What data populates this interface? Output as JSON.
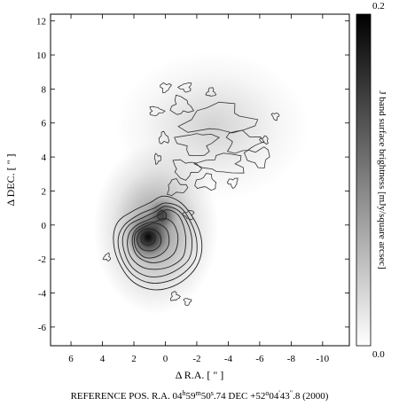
{
  "chart_data": {
    "type": "heatmap",
    "xlabel": "Δ R.A. [ \" ]",
    "ylabel": "Δ DEC. [ \" ]",
    "xlim": [
      7.3,
      -11.7
    ],
    "ylim": [
      -7.1,
      12.4
    ],
    "x_ticks": [
      6,
      4,
      2,
      0,
      -2,
      -4,
      -6,
      -8,
      -10
    ],
    "y_ticks": [
      12,
      10,
      8,
      6,
      4,
      2,
      0,
      -2,
      -4,
      -6
    ],
    "x_tick_labels": [
      "6",
      "4",
      "2",
      "0",
      "-2",
      "-4",
      "-6",
      "-8",
      "-10"
    ],
    "y_tick_labels": [
      "12",
      "10",
      "8",
      "6",
      "4",
      "2",
      "0",
      "-2",
      "-4",
      "-6"
    ],
    "colorbar": {
      "min": 0.0,
      "max": 0.2,
      "min_label": "0.0",
      "max_label": "0.2",
      "label": "J band surface brightness [mJy/square arcsec]",
      "colormap": "grayscale-inverted"
    },
    "sources": [
      {
        "x": 1.1,
        "y": -0.7,
        "peak": 0.2,
        "sx": 0.65,
        "sy": 0.65
      },
      {
        "x": 0.2,
        "y": 0.6,
        "peak": 0.13,
        "sx": 0.45,
        "sy": 0.45
      },
      {
        "x": 0.6,
        "y": -0.2,
        "peak": 0.09,
        "sx": 1.8,
        "sy": 2.3
      },
      {
        "x": -3.0,
        "y": 5.8,
        "peak": 0.035,
        "sx": 2.8,
        "sy": 2.0
      }
    ],
    "contour_rings": [
      [
        [
          0.1,
          1.7
        ],
        [
          -1.0,
          1.3
        ],
        [
          -1.9,
          0.2
        ],
        [
          -2.3,
          -0.9
        ],
        [
          -2.2,
          -2.0
        ],
        [
          -1.6,
          -2.9
        ],
        [
          -0.5,
          -3.6
        ],
        [
          0.8,
          -3.8
        ],
        [
          2.1,
          -3.3
        ],
        [
          3.0,
          -2.1
        ],
        [
          3.3,
          -0.8
        ],
        [
          3.0,
          0.2
        ],
        [
          2.1,
          0.8
        ],
        [
          1.0,
          1.3
        ]
      ],
      [
        [
          0.0,
          1.3
        ],
        [
          -1.0,
          1.0
        ],
        [
          -1.7,
          0.0
        ],
        [
          -2.0,
          -1.0
        ],
        [
          -1.9,
          -2.0
        ],
        [
          -1.2,
          -2.8
        ],
        [
          -0.2,
          -3.3
        ],
        [
          1.0,
          -3.4
        ],
        [
          2.1,
          -2.9
        ],
        [
          2.8,
          -1.9
        ],
        [
          3.0,
          -0.8
        ],
        [
          2.6,
          0.0
        ],
        [
          1.7,
          0.6
        ],
        [
          0.7,
          1.0
        ]
      ],
      [
        [
          0.0,
          1.1
        ],
        [
          -0.9,
          0.8
        ],
        [
          -1.5,
          -0.1
        ],
        [
          -1.7,
          -1.1
        ],
        [
          -1.5,
          -2.0
        ],
        [
          -0.8,
          -2.6
        ],
        [
          0.2,
          -3.0
        ],
        [
          1.2,
          -3.0
        ],
        [
          2.1,
          -2.5
        ],
        [
          2.6,
          -1.6
        ],
        [
          2.7,
          -0.7
        ],
        [
          2.3,
          0.0
        ],
        [
          1.5,
          0.4
        ],
        [
          0.6,
          0.8
        ]
      ],
      [
        [
          -0.1,
          0.9
        ],
        [
          -0.8,
          0.6
        ],
        [
          -1.2,
          -0.2
        ],
        [
          -1.3,
          -1.1
        ],
        [
          -1.1,
          -1.9
        ],
        [
          -0.4,
          -2.4
        ],
        [
          0.5,
          -2.6
        ],
        [
          1.4,
          -2.5
        ],
        [
          2.1,
          -2.0
        ],
        [
          2.4,
          -1.3
        ],
        [
          2.3,
          -0.5
        ],
        [
          1.8,
          0.0
        ],
        [
          1.1,
          0.3
        ],
        [
          0.4,
          0.6
        ]
      ],
      [
        [
          0.1,
          0.4
        ],
        [
          -0.5,
          0.1
        ],
        [
          -0.8,
          -0.7
        ],
        [
          -0.6,
          -1.6
        ],
        [
          0.1,
          -2.1
        ],
        [
          1.0,
          -2.2
        ],
        [
          1.8,
          -1.8
        ],
        [
          2.1,
          -1.0
        ],
        [
          1.9,
          -0.3
        ],
        [
          1.2,
          0.1
        ],
        [
          0.6,
          0.2
        ]
      ],
      [
        [
          0.6,
          0.1
        ],
        [
          -0.1,
          -0.3
        ],
        [
          -0.2,
          -1.2
        ],
        [
          0.4,
          -1.8
        ],
        [
          1.3,
          -1.9
        ],
        [
          1.9,
          -1.3
        ],
        [
          1.9,
          -0.5
        ],
        [
          1.3,
          -0.1
        ]
      ],
      [
        [
          1.0,
          -0.2
        ],
        [
          0.4,
          -0.5
        ],
        [
          0.3,
          -1.1
        ],
        [
          0.8,
          -1.5
        ],
        [
          1.5,
          -1.4
        ],
        [
          1.8,
          -0.9
        ],
        [
          1.6,
          -0.4
        ]
      ],
      [
        [
          1.1,
          -0.4
        ],
        [
          0.7,
          -0.6
        ],
        [
          0.7,
          -1.0
        ],
        [
          1.1,
          -1.2
        ],
        [
          1.5,
          -1.0
        ],
        [
          1.5,
          -0.6
        ]
      ],
      [
        [
          0.25,
          0.85
        ],
        [
          -0.05,
          0.65
        ],
        [
          0.0,
          0.35
        ],
        [
          0.3,
          0.3
        ],
        [
          0.5,
          0.55
        ]
      ]
    ],
    "contour_blobs": [
      {
        "x": -3.4,
        "y": 6.2,
        "w": 4.2,
        "h": 1.6
      },
      {
        "x": -4.9,
        "y": 4.9,
        "w": 2.0,
        "h": 1.2
      },
      {
        "x": -2.0,
        "y": 4.8,
        "w": 2.2,
        "h": 1.3
      },
      {
        "x": -3.7,
        "y": 3.6,
        "w": 2.6,
        "h": 1.1
      },
      {
        "x": -1.0,
        "y": 7.0,
        "w": 1.2,
        "h": 1.0
      },
      {
        "x": -1.3,
        "y": 3.3,
        "w": 1.6,
        "h": 1.0
      },
      {
        "x": -5.9,
        "y": 4.0,
        "w": 1.5,
        "h": 1.0
      },
      {
        "x": -2.6,
        "y": 2.5,
        "w": 1.3,
        "h": 0.8
      },
      {
        "x": -0.7,
        "y": 2.2,
        "w": 1.2,
        "h": 0.8
      },
      {
        "x": 0.0,
        "y": 8.1,
        "w": 0.6,
        "h": 0.5
      },
      {
        "x": -1.3,
        "y": 8.1,
        "w": 0.7,
        "h": 0.5
      },
      {
        "x": -2.9,
        "y": 7.8,
        "w": 0.5,
        "h": 0.5
      },
      {
        "x": 0.6,
        "y": 6.7,
        "w": 0.8,
        "h": 0.5
      },
      {
        "x": -7.0,
        "y": 6.4,
        "w": 0.4,
        "h": 0.4
      },
      {
        "x": -6.3,
        "y": 5.0,
        "w": 0.5,
        "h": 0.4
      },
      {
        "x": 0.1,
        "y": 5.1,
        "w": 0.6,
        "h": 0.6
      },
      {
        "x": 0.5,
        "y": 3.9,
        "w": 0.4,
        "h": 0.5
      },
      {
        "x": -4.3,
        "y": 2.5,
        "w": 0.6,
        "h": 0.5
      },
      {
        "x": 3.7,
        "y": -1.9,
        "w": 0.4,
        "h": 0.4
      },
      {
        "x": -0.6,
        "y": -4.2,
        "w": 0.5,
        "h": 0.5
      },
      {
        "x": -1.4,
        "y": -4.5,
        "w": 0.4,
        "h": 0.4
      },
      {
        "x": -1.5,
        "y": 0.6,
        "w": 0.6,
        "h": 0.5
      }
    ]
  },
  "reference": {
    "prefix": "REFERENCE POS.  R.A. 04",
    "h": "h",
    "ra_min": "59",
    "m": "m",
    "ra_sec_int": "50",
    "s": "s",
    "ra_sec_frac": ".74  DEC  +52",
    "deg": "o",
    "dec_min": "04",
    "arcmin": "'",
    "dec_sec_int": "43",
    "arcsec": "\"",
    "dec_sec_frac": ".8  (2000)"
  }
}
